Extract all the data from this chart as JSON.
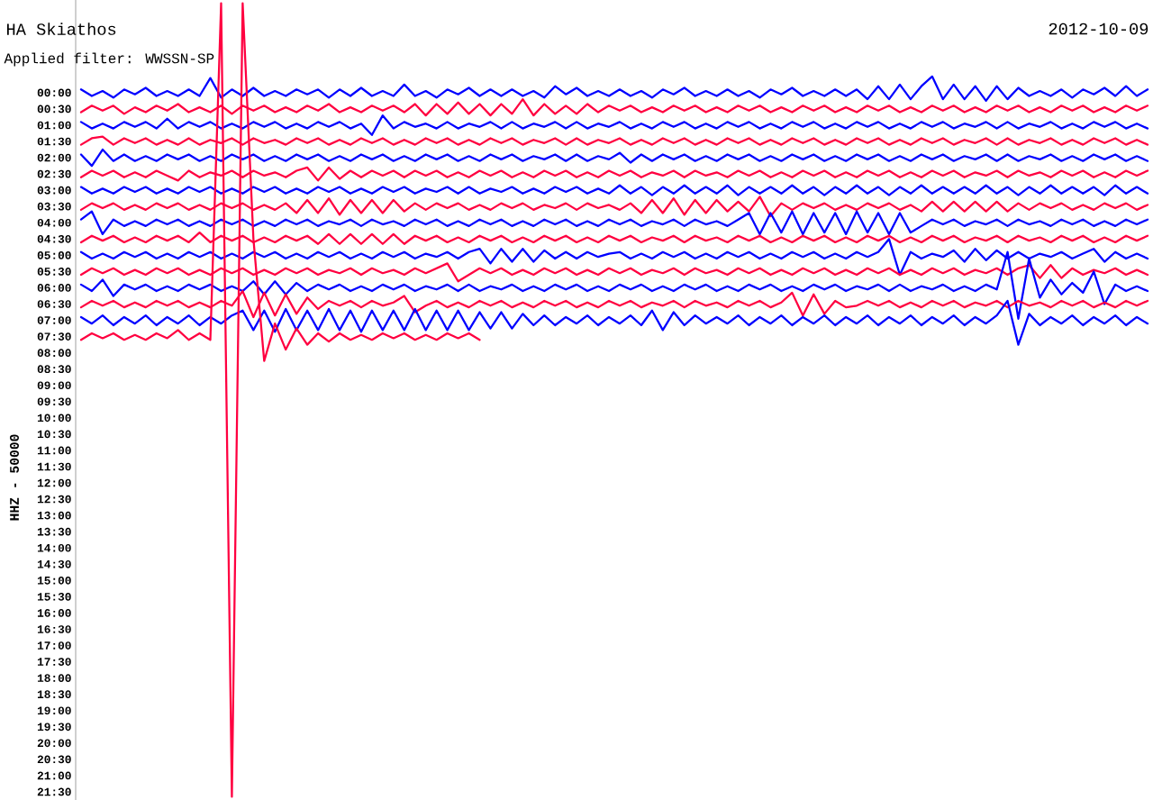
{
  "chart_data": {
    "type": "line",
    "title": "HA Skiathos",
    "subtitle": "Applied filter: WWSSN-SP",
    "annotations": [
      "2012-10-09"
    ],
    "ylabel": "HHZ - 50000",
    "tick_labels": "y",
    "ylim": [
      21.75,
      -2.85
    ],
    "yticks": [
      {
        "value": 0,
        "label": "00:00"
      },
      {
        "value": 0.5,
        "label": "00:30"
      },
      {
        "value": 1,
        "label": "01:00"
      },
      {
        "value": 1.5,
        "label": "01:30"
      },
      {
        "value": 2,
        "label": "02:00"
      },
      {
        "value": 2.5,
        "label": "02:30"
      },
      {
        "value": 3,
        "label": "03:00"
      },
      {
        "value": 3.5,
        "label": "03:30"
      },
      {
        "value": 4,
        "label": "04:00"
      },
      {
        "value": 4.5,
        "label": "04:30"
      },
      {
        "value": 5,
        "label": "05:00"
      },
      {
        "value": 5.5,
        "label": "05:30"
      },
      {
        "value": 6,
        "label": "06:00"
      },
      {
        "value": 6.5,
        "label": "06:30"
      },
      {
        "value": 7,
        "label": "07:00"
      },
      {
        "value": 7.5,
        "label": "07:30"
      },
      {
        "value": 8,
        "label": "08:00"
      },
      {
        "value": 8.5,
        "label": "08:30"
      },
      {
        "value": 9,
        "label": "09:00"
      },
      {
        "value": 9.5,
        "label": "09:30"
      },
      {
        "value": 10,
        "label": "10:00"
      },
      {
        "value": 10.5,
        "label": "10:30"
      },
      {
        "value": 11,
        "label": "11:00"
      },
      {
        "value": 11.5,
        "label": "11:30"
      },
      {
        "value": 12,
        "label": "12:00"
      },
      {
        "value": 12.5,
        "label": "12:30"
      },
      {
        "value": 13,
        "label": "13:00"
      },
      {
        "value": 13.5,
        "label": "13:30"
      },
      {
        "value": 14,
        "label": "14:00"
      },
      {
        "value": 14.5,
        "label": "14:30"
      },
      {
        "value": 15,
        "label": "15:00"
      },
      {
        "value": 15.5,
        "label": "15:30"
      },
      {
        "value": 16,
        "label": "16:00"
      },
      {
        "value": 16.5,
        "label": "16:30"
      },
      {
        "value": 17,
        "label": "17:00"
      },
      {
        "value": 17.5,
        "label": "17:30"
      },
      {
        "value": 18,
        "label": "18:00"
      },
      {
        "value": 18.5,
        "label": "18:30"
      },
      {
        "value": 19,
        "label": "19:00"
      },
      {
        "value": 19.5,
        "label": "19:30"
      },
      {
        "value": 20,
        "label": "20:00"
      },
      {
        "value": 20.5,
        "label": "20:30"
      },
      {
        "value": 21,
        "label": "21:00"
      },
      {
        "value": 21.5,
        "label": "21:30"
      }
    ],
    "categories": [
      null,
      null,
      null,
      null,
      null,
      null,
      null,
      null,
      null,
      null,
      null,
      null,
      null,
      null,
      null,
      null,
      null,
      null,
      null,
      null,
      null,
      null,
      null,
      null,
      null,
      null,
      null,
      null,
      null,
      null,
      null,
      null,
      null,
      null,
      null,
      null,
      null,
      null,
      null,
      null,
      null,
      null,
      null,
      null,
      null,
      null,
      null,
      null,
      null,
      null,
      null,
      null,
      null,
      null,
      null,
      null,
      null,
      null,
      null,
      null,
      null,
      null,
      null,
      null,
      null,
      null,
      null,
      null,
      null,
      null,
      null,
      null,
      null,
      null,
      null,
      null,
      null,
      null,
      null,
      null,
      null,
      null,
      null,
      null,
      null,
      null,
      null,
      null,
      null,
      null,
      null,
      null,
      null,
      null,
      null,
      null,
      null,
      null,
      null,
      null
    ],
    "series": [
      {
        "color": "#0000ff",
        "values": [
          -0.1,
          0.1,
          -0.05,
          0.15,
          -0.1,
          0.05,
          -0.15,
          0.1,
          -0.05,
          0.1,
          -0.1,
          0.1,
          -0.45,
          0.15,
          -0.1,
          0.1,
          -0.15,
          0.1,
          -0.05,
          0.1,
          -0.1,
          0.05,
          -0.1,
          0.15,
          -0.1,
          0.1,
          -0.15,
          0.1,
          -0.05,
          0.1,
          -0.25,
          0.1,
          -0.05,
          0.15,
          -0.1,
          0.05,
          -0.15,
          0.1,
          -0.1,
          0.1,
          -0.1,
          0.1,
          -0.05,
          0.15,
          -0.2,
          0.05,
          -0.15,
          0.1,
          -0.05,
          0.1,
          -0.1,
          0.1,
          -0.05,
          0.15,
          -0.1,
          0.05,
          -0.15,
          0.1,
          -0.05,
          0.1,
          -0.1,
          0.1,
          -0.05,
          0.15,
          -0.1,
          0.05,
          -0.15,
          0.1,
          -0.05,
          0.1,
          -0.1,
          0.1,
          -0.1,
          0.2,
          -0.2,
          0.2,
          -0.25,
          0.2,
          -0.2,
          -0.5,
          0.2,
          -0.25,
          0.2,
          -0.2,
          0.25,
          -0.2,
          0.2,
          -0.15,
          0.1,
          -0.05,
          0.1,
          -0.1,
          0.15,
          -0.1,
          0.05,
          -0.15,
          0.1,
          -0.2,
          0.1,
          -0.1
        ]
      },
      {
        "color": "#ff0040",
        "values": [
          0.6,
          0.4,
          0.55,
          0.4,
          0.65,
          0.45,
          0.6,
          0.4,
          0.55,
          0.35,
          0.6,
          0.45,
          0.6,
          0.4,
          0.65,
          0.4,
          0.55,
          0.4,
          0.6,
          0.45,
          0.6,
          0.4,
          0.55,
          0.35,
          0.6,
          0.45,
          0.6,
          0.4,
          0.55,
          0.4,
          0.6,
          0.35,
          0.7,
          0.35,
          0.65,
          0.3,
          0.65,
          0.35,
          0.7,
          0.35,
          0.65,
          0.2,
          0.7,
          0.35,
          0.65,
          0.4,
          0.65,
          0.35,
          0.6,
          0.4,
          0.55,
          0.4,
          0.6,
          0.45,
          0.6,
          0.4,
          0.55,
          0.4,
          0.6,
          0.45,
          0.6,
          0.4,
          0.55,
          0.4,
          0.6,
          0.45,
          0.6,
          0.4,
          0.55,
          0.4,
          0.6,
          0.45,
          0.6,
          0.4,
          0.55,
          0.4,
          0.6,
          0.45,
          0.6,
          0.4,
          0.55,
          0.4,
          0.6,
          0.45,
          0.6,
          0.4,
          0.55,
          0.4,
          0.6,
          0.45,
          0.6,
          0.4,
          0.55,
          0.4,
          0.6,
          0.45,
          0.6,
          0.4,
          0.55,
          0.4
        ]
      },
      {
        "color": "#0000ff",
        "values": [
          0.9,
          1.1,
          0.95,
          1.1,
          0.9,
          1.05,
          0.9,
          1.1,
          0.8,
          1.1,
          0.9,
          1.05,
          0.9,
          1.1,
          0.95,
          1.1,
          0.9,
          1.05,
          0.9,
          1.1,
          0.95,
          1.1,
          0.9,
          1.05,
          0.9,
          1.1,
          0.95,
          1.3,
          0.7,
          1.1,
          0.9,
          1.05,
          0.95,
          1.1,
          0.9,
          1.1,
          0.95,
          1.05,
          0.9,
          1.1,
          0.9,
          1.1,
          0.95,
          1.05,
          0.9,
          1.1,
          0.9,
          1.1,
          0.95,
          1.05,
          0.9,
          1.1,
          0.95,
          1.1,
          0.9,
          1.05,
          0.9,
          1.1,
          0.95,
          1.1,
          0.9,
          1.05,
          0.9,
          1.1,
          0.95,
          1.1,
          0.9,
          1.05,
          0.9,
          1.1,
          0.95,
          1.1,
          0.9,
          1.05,
          0.9,
          1.1,
          0.95,
          1.1,
          0.9,
          1.05,
          0.9,
          1.1,
          0.95,
          1.05,
          0.9,
          1.1,
          0.9,
          1.1,
          0.95,
          1.05,
          0.9,
          1.1,
          0.95,
          1.1,
          0.9,
          1.05,
          0.9,
          1.1,
          0.95,
          1.1
        ]
      },
      {
        "color": "#ff0040",
        "values": [
          1.6,
          1.4,
          1.35,
          1.6,
          1.4,
          1.55,
          1.4,
          1.6,
          1.45,
          1.6,
          1.4,
          1.6,
          1.45,
          1.55,
          1.4,
          1.6,
          1.4,
          1.55,
          1.45,
          1.6,
          1.4,
          1.55,
          1.4,
          1.6,
          1.45,
          1.6,
          1.4,
          1.55,
          1.4,
          1.6,
          1.45,
          1.6,
          1.4,
          1.55,
          1.4,
          1.6,
          1.45,
          1.6,
          1.4,
          1.55,
          1.4,
          1.6,
          1.45,
          1.55,
          1.4,
          1.6,
          1.4,
          1.6,
          1.45,
          1.55,
          1.4,
          1.6,
          1.45,
          1.6,
          1.4,
          1.55,
          1.4,
          1.6,
          1.45,
          1.6,
          1.4,
          1.55,
          1.4,
          1.6,
          1.45,
          1.6,
          1.4,
          1.55,
          1.4,
          1.6,
          1.45,
          1.6,
          1.4,
          1.55,
          1.4,
          1.6,
          1.45,
          1.6,
          1.4,
          1.55,
          1.4,
          1.6,
          1.45,
          1.55,
          1.4,
          1.6,
          1.4,
          1.6,
          1.45,
          1.55,
          1.4,
          1.6,
          1.45,
          1.6,
          1.4,
          1.55,
          1.4,
          1.6,
          1.45,
          1.6
        ]
      },
      {
        "color": "#0000ff",
        "values": [
          1.9,
          2.25,
          1.75,
          2.1,
          1.9,
          2.1,
          1.95,
          2.1,
          1.9,
          2.05,
          1.9,
          2.1,
          1.95,
          2.1,
          1.9,
          2.05,
          1.9,
          2.1,
          1.95,
          2.1,
          1.9,
          2.05,
          1.9,
          2.1,
          1.95,
          2.1,
          1.9,
          2.05,
          1.9,
          2.1,
          1.95,
          2.1,
          1.9,
          2.05,
          1.9,
          2.1,
          1.95,
          2.1,
          1.9,
          2.05,
          1.9,
          2.1,
          1.95,
          2.05,
          1.9,
          2.1,
          1.9,
          2.1,
          1.95,
          2.05,
          1.85,
          2.15,
          1.9,
          2.1,
          1.9,
          2.05,
          1.9,
          2.1,
          1.95,
          2.1,
          1.9,
          2.05,
          1.9,
          2.1,
          1.95,
          2.1,
          1.9,
          2.05,
          1.9,
          2.1,
          1.95,
          2.1,
          1.9,
          2.05,
          1.9,
          2.1,
          1.95,
          2.1,
          1.9,
          2.05,
          1.9,
          2.1,
          1.95,
          2.05,
          1.9,
          2.1,
          1.9,
          2.1,
          1.95,
          2.05,
          1.9,
          2.1,
          1.95,
          2.1,
          1.9,
          2.05,
          1.9,
          2.1,
          1.95,
          2.1
        ]
      },
      {
        "color": "#ff0040",
        "values": [
          2.6,
          2.4,
          2.55,
          2.4,
          2.6,
          2.45,
          2.6,
          2.4,
          2.55,
          2.7,
          2.4,
          2.6,
          2.45,
          2.55,
          2.4,
          2.6,
          2.4,
          2.55,
          2.45,
          2.6,
          2.4,
          2.3,
          2.7,
          2.3,
          2.65,
          2.4,
          2.6,
          2.4,
          2.55,
          2.4,
          2.6,
          2.4,
          2.55,
          2.4,
          2.6,
          2.45,
          2.6,
          2.4,
          2.55,
          2.4,
          2.6,
          2.45,
          2.6,
          2.4,
          2.55,
          2.4,
          2.6,
          2.45,
          2.6,
          2.4,
          2.55,
          2.4,
          2.6,
          2.45,
          2.55,
          2.4,
          2.6,
          2.4,
          2.55,
          2.45,
          2.6,
          2.4,
          2.55,
          2.4,
          2.6,
          2.45,
          2.6,
          2.4,
          2.55,
          2.4,
          2.6,
          2.45,
          2.6,
          2.4,
          2.55,
          2.4,
          2.6,
          2.45,
          2.6,
          2.4,
          2.55,
          2.4,
          2.6,
          2.45,
          2.55,
          2.4,
          2.6,
          2.4,
          2.55,
          2.45,
          2.6,
          2.4,
          2.55,
          2.4,
          2.6,
          2.45,
          2.6,
          2.4,
          2.55,
          2.4
        ]
      },
      {
        "color": "#0000ff",
        "values": [
          2.9,
          3.1,
          2.95,
          3.1,
          2.9,
          3.05,
          2.9,
          3.1,
          2.95,
          3.1,
          2.9,
          3.05,
          2.9,
          3.1,
          2.95,
          3.1,
          2.9,
          3.05,
          2.9,
          3.1,
          2.95,
          3.1,
          2.9,
          3.05,
          2.9,
          3.1,
          2.95,
          3.1,
          2.9,
          3.05,
          2.9,
          3.1,
          2.95,
          3.05,
          2.9,
          3.1,
          2.9,
          3.1,
          2.95,
          3.05,
          2.9,
          3.1,
          2.95,
          3.1,
          2.9,
          3.05,
          2.9,
          3.1,
          2.95,
          3.1,
          2.85,
          3.1,
          2.9,
          3.15,
          2.9,
          3.1,
          2.85,
          3.1,
          2.9,
          3.1,
          2.85,
          3.15,
          2.9,
          3.1,
          2.9,
          3.1,
          2.85,
          3.1,
          2.9,
          3.15,
          2.9,
          3.1,
          2.85,
          3.1,
          2.9,
          3.15,
          2.9,
          3.1,
          2.85,
          3.1,
          2.9,
          3.1,
          2.9,
          3.1,
          2.85,
          3.1,
          2.9,
          3.15,
          2.9,
          3.1,
          2.85,
          3.1,
          2.9,
          3.1,
          2.9,
          3.15,
          2.85,
          3.1,
          2.9,
          3.1
        ]
      },
      {
        "color": "#ff0040",
        "values": [
          3.6,
          3.4,
          3.55,
          3.4,
          3.6,
          3.45,
          3.6,
          3.4,
          3.55,
          3.4,
          3.6,
          3.45,
          3.6,
          3.4,
          3.55,
          3.4,
          3.6,
          3.45,
          3.6,
          3.4,
          3.7,
          3.3,
          3.7,
          3.25,
          3.75,
          3.3,
          3.7,
          3.3,
          3.7,
          3.3,
          3.65,
          3.4,
          3.6,
          3.4,
          3.55,
          3.4,
          3.6,
          3.45,
          3.6,
          3.4,
          3.55,
          3.4,
          3.6,
          3.45,
          3.55,
          3.4,
          3.6,
          3.4,
          3.55,
          3.45,
          3.6,
          3.4,
          3.7,
          3.3,
          3.7,
          3.25,
          3.75,
          3.3,
          3.7,
          3.3,
          3.65,
          3.35,
          3.65,
          3.2,
          3.8,
          3.4,
          3.6,
          3.4,
          3.55,
          3.4,
          3.6,
          3.45,
          3.6,
          3.4,
          3.55,
          3.4,
          3.6,
          3.45,
          3.65,
          3.35,
          3.65,
          3.35,
          3.65,
          3.35,
          3.65,
          3.35,
          3.65,
          3.4,
          3.6,
          3.4,
          3.55,
          3.4,
          3.6,
          3.45,
          3.6,
          3.4,
          3.55,
          3.4,
          3.6,
          3.45
        ]
      },
      {
        "color": "#0000ff",
        "values": [
          3.9,
          3.65,
          4.35,
          3.9,
          4.1,
          3.95,
          4.1,
          3.9,
          4.05,
          3.9,
          4.1,
          3.95,
          4.1,
          3.9,
          4.05,
          3.9,
          4.1,
          3.95,
          4.1,
          3.9,
          4.05,
          3.9,
          4.1,
          3.95,
          4.05,
          3.9,
          4.1,
          3.9,
          4.05,
          3.95,
          4.1,
          3.9,
          4.05,
          3.9,
          4.1,
          3.95,
          4.1,
          3.9,
          4.05,
          3.9,
          4.1,
          3.95,
          4.1,
          3.9,
          4.05,
          3.9,
          4.1,
          3.95,
          4.1,
          3.9,
          4.05,
          3.9,
          4.1,
          3.95,
          4.05,
          3.9,
          4.1,
          3.9,
          4.05,
          3.95,
          4.1,
          3.9,
          3.7,
          4.35,
          3.7,
          4.3,
          3.65,
          4.35,
          3.7,
          4.3,
          3.7,
          4.35,
          3.65,
          4.3,
          3.7,
          4.35,
          3.7,
          4.3,
          4.1,
          3.9,
          4.05,
          3.9,
          4.1,
          3.95,
          4.05,
          3.9,
          4.1,
          3.9,
          4.05,
          3.95,
          4.1,
          3.9,
          4.05,
          3.9,
          4.1,
          3.95,
          4.1,
          3.9,
          4.05,
          3.9
        ]
      },
      {
        "color": "#ff0040",
        "values": [
          4.6,
          4.4,
          4.55,
          4.4,
          4.6,
          4.45,
          4.6,
          4.4,
          4.55,
          4.4,
          4.6,
          4.3,
          4.6,
          4.4,
          4.55,
          4.4,
          4.6,
          4.45,
          4.6,
          4.4,
          4.55,
          4.4,
          4.65,
          4.35,
          4.65,
          4.35,
          4.65,
          4.35,
          4.65,
          4.35,
          4.65,
          4.4,
          4.55,
          4.4,
          4.6,
          4.45,
          4.6,
          4.4,
          4.55,
          4.4,
          4.6,
          4.45,
          4.6,
          4.4,
          4.55,
          4.4,
          4.6,
          4.45,
          4.6,
          4.4,
          4.55,
          4.4,
          4.6,
          4.45,
          4.55,
          4.4,
          4.6,
          4.4,
          4.55,
          4.45,
          4.6,
          4.4,
          4.55,
          4.4,
          4.6,
          4.45,
          4.6,
          4.4,
          4.55,
          4.4,
          4.6,
          4.45,
          4.6,
          4.4,
          4.55,
          4.4,
          4.6,
          4.45,
          4.6,
          4.4,
          4.55,
          4.4,
          4.6,
          4.45,
          4.55,
          4.4,
          4.6,
          4.4,
          4.55,
          4.45,
          4.6,
          4.4,
          4.55,
          4.4,
          4.6,
          4.45,
          4.6,
          4.4,
          4.55,
          4.4
        ]
      },
      {
        "color": "#0000ff",
        "values": [
          4.9,
          5.1,
          4.95,
          5.1,
          4.9,
          5.05,
          4.9,
          5.1,
          4.95,
          5.1,
          4.9,
          5.05,
          4.9,
          5.1,
          4.95,
          5.1,
          4.9,
          5.05,
          4.9,
          5.1,
          4.95,
          5.1,
          4.9,
          5.05,
          4.9,
          5.1,
          4.95,
          5.1,
          4.9,
          5.05,
          4.9,
          5.1,
          4.95,
          5.05,
          4.9,
          5.1,
          4.9,
          4.8,
          5.25,
          4.8,
          5.2,
          4.8,
          5.2,
          4.85,
          5.1,
          4.9,
          5.1,
          4.9,
          5.05,
          4.95,
          4.9,
          5.1,
          4.95,
          5.1,
          4.9,
          5.05,
          4.9,
          5.1,
          4.95,
          5.1,
          4.9,
          5.05,
          4.9,
          5.1,
          4.95,
          5.1,
          4.9,
          5.05,
          4.9,
          5.1,
          4.95,
          5.1,
          4.9,
          5.05,
          4.9,
          4.5,
          5.6,
          4.9,
          5.1,
          4.95,
          5.05,
          4.85,
          5.2,
          4.8,
          5.15,
          4.85,
          5.1,
          4.9,
          5.1,
          4.95,
          5.05,
          4.9,
          5.1,
          4.95,
          4.8,
          5.2,
          4.9,
          5.1,
          4.95,
          5.1
        ]
      },
      {
        "color": "#ff0040",
        "values": [
          5.6,
          5.4,
          5.55,
          5.4,
          5.6,
          5.45,
          5.6,
          5.4,
          5.55,
          5.4,
          5.6,
          5.45,
          5.6,
          5.4,
          5.55,
          5.4,
          5.6,
          5.45,
          5.6,
          5.4,
          5.55,
          5.4,
          5.6,
          5.45,
          5.55,
          5.4,
          5.6,
          5.4,
          5.55,
          5.45,
          5.6,
          5.4,
          5.55,
          5.4,
          5.25,
          5.8,
          5.6,
          5.4,
          5.55,
          5.4,
          5.6,
          5.45,
          5.6,
          5.4,
          5.55,
          5.4,
          5.6,
          5.45,
          5.6,
          5.4,
          5.55,
          5.4,
          5.6,
          5.45,
          5.55,
          5.4,
          5.6,
          5.4,
          5.55,
          5.45,
          5.6,
          5.4,
          5.55,
          5.4,
          5.6,
          5.45,
          5.6,
          5.4,
          5.55,
          5.4,
          5.6,
          5.45,
          5.6,
          5.4,
          5.55,
          5.4,
          5.6,
          5.45,
          5.6,
          5.4,
          5.55,
          5.4,
          5.6,
          5.45,
          5.55,
          5.4,
          5.6,
          5.4,
          5.3,
          5.7,
          5.3,
          5.7,
          5.4,
          5.6,
          5.45,
          5.55,
          5.4,
          5.6,
          5.45,
          5.6
        ]
      },
      {
        "color": "#0000ff",
        "values": [
          5.9,
          6.1,
          5.75,
          6.25,
          5.9,
          6.05,
          5.9,
          6.1,
          5.95,
          6.1,
          5.9,
          6.05,
          5.9,
          6.1,
          5.95,
          6.1,
          5.8,
          6.2,
          5.8,
          6.2,
          5.85,
          6.1,
          5.9,
          6.05,
          5.9,
          6.1,
          5.95,
          6.1,
          5.9,
          6.05,
          5.9,
          6.1,
          5.95,
          6.05,
          5.9,
          6.1,
          5.9,
          6.1,
          5.95,
          6.05,
          5.9,
          6.1,
          5.95,
          6.1,
          5.9,
          6.05,
          5.9,
          6.1,
          5.95,
          6.1,
          5.9,
          6.05,
          5.9,
          6.1,
          5.95,
          6.1,
          5.9,
          6.05,
          5.9,
          6.1,
          5.95,
          6.1,
          5.9,
          6.05,
          5.9,
          6.1,
          5.95,
          6.1,
          5.9,
          6.05,
          5.9,
          6.1,
          5.95,
          6.05,
          5.9,
          6.1,
          5.9,
          6.1,
          5.95,
          6.05,
          5.9,
          6.1,
          5.95,
          6.1,
          5.9,
          6.05,
          4.9,
          6.95,
          5.1,
          6.3,
          5.75,
          6.2,
          5.85,
          6.15,
          5.5,
          6.5,
          5.9,
          6.1,
          5.95,
          6.1
        ]
      },
      {
        "color": "#ff0040",
        "values": [
          6.6,
          6.4,
          6.55,
          6.4,
          6.6,
          6.45,
          6.6,
          6.4,
          6.55,
          6.4,
          6.6,
          6.45,
          6.6,
          6.4,
          6.55,
          6.1,
          6.9,
          6.15,
          6.85,
          6.2,
          6.8,
          6.3,
          6.65,
          6.4,
          6.55,
          6.4,
          6.6,
          6.4,
          6.55,
          6.45,
          6.25,
          6.75,
          6.55,
          6.4,
          6.6,
          6.45,
          6.6,
          6.4,
          6.55,
          6.4,
          6.6,
          6.45,
          6.6,
          6.4,
          6.55,
          6.4,
          6.6,
          6.45,
          6.6,
          6.4,
          6.55,
          6.4,
          6.6,
          6.45,
          6.55,
          6.4,
          6.6,
          6.4,
          6.55,
          6.45,
          6.6,
          6.4,
          6.55,
          6.4,
          6.6,
          6.45,
          6.15,
          6.85,
          6.2,
          6.8,
          6.4,
          6.6,
          6.55,
          6.4,
          6.55,
          6.4,
          6.6,
          6.45,
          6.6,
          6.4,
          6.55,
          6.4,
          6.6,
          6.45,
          6.55,
          6.4,
          6.6,
          6.4,
          6.55,
          6.45,
          6.6,
          6.4,
          6.55,
          6.4,
          6.6,
          6.45,
          6.6,
          6.4,
          6.55,
          6.4
        ]
      },
      {
        "color": "#0000ff",
        "values": [
          6.9,
          7.1,
          6.85,
          7.15,
          6.9,
          7.1,
          6.85,
          7.15,
          6.9,
          7.1,
          6.85,
          7.15,
          6.9,
          7.1,
          6.85,
          6.7,
          7.3,
          6.7,
          7.35,
          6.65,
          7.3,
          6.7,
          7.3,
          6.65,
          7.3,
          6.7,
          7.35,
          6.7,
          7.3,
          6.7,
          7.3,
          6.65,
          7.3,
          6.7,
          7.3,
          6.7,
          7.3,
          6.75,
          7.25,
          6.75,
          7.25,
          6.8,
          7.15,
          6.85,
          7.15,
          6.9,
          7.1,
          6.85,
          7.15,
          6.9,
          7.1,
          6.85,
          7.15,
          6.7,
          7.3,
          6.75,
          7.15,
          6.85,
          7.1,
          6.9,
          7.1,
          6.85,
          7.15,
          6.9,
          7.1,
          6.85,
          7.15,
          6.9,
          7.1,
          6.85,
          7.15,
          6.9,
          7.1,
          6.85,
          7.15,
          6.9,
          7.1,
          6.85,
          7.15,
          6.9,
          7.1,
          6.85,
          7.15,
          6.9,
          7.1,
          6.85,
          6.4,
          7.75,
          6.8,
          7.15,
          6.9,
          7.1,
          6.85,
          7.15,
          6.9,
          7.1,
          6.85,
          7.15,
          6.9,
          7.1
        ]
      },
      {
        "color": "#ff0040",
        "values": [
          7.6,
          7.4,
          7.55,
          7.4,
          7.6,
          7.45,
          7.6,
          7.4,
          7.55,
          7.3,
          7.6,
          7.4,
          7.6,
          -2.75,
          21.65,
          -2.75,
          4.5,
          8.25,
          7.1,
          7.9,
          7.25,
          7.75,
          7.4,
          7.65,
          7.4,
          7.6,
          7.45,
          7.6,
          7.4,
          7.55,
          7.4,
          7.6,
          7.45,
          7.6,
          7.4,
          7.55,
          7.4,
          7.6,
          null,
          null,
          null,
          null,
          null,
          null,
          null,
          null,
          null,
          null,
          null,
          null,
          null,
          null,
          null,
          null,
          null,
          null,
          null,
          null,
          null,
          null,
          null,
          null,
          null,
          null,
          null,
          null,
          null,
          null,
          null,
          null,
          null,
          null,
          null,
          null,
          null,
          null,
          null,
          null,
          null,
          null,
          null,
          null,
          null,
          null,
          null,
          null,
          null,
          null,
          null,
          null,
          null,
          null,
          null,
          null,
          null,
          null,
          null,
          null,
          null,
          null
        ]
      }
    ]
  }
}
